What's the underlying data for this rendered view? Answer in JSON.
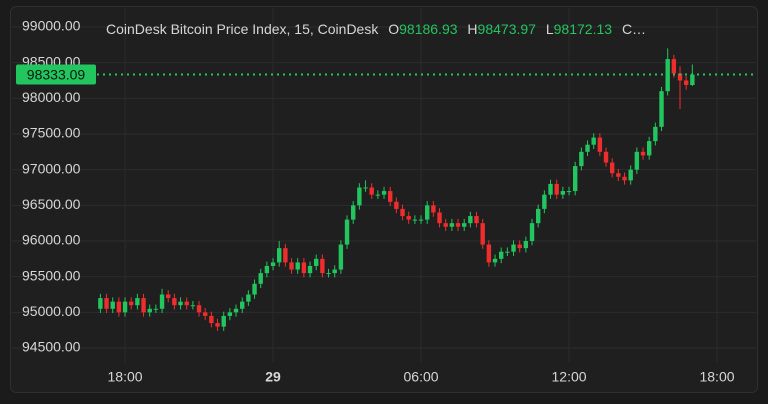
{
  "chart_data": {
    "type": "candlestick",
    "title": "CoinDesk Bitcoin Price Index, 15, CoinDesk",
    "ohlc_labels": [
      "O",
      "H",
      "L",
      "C…"
    ],
    "up_color": "#22c55e",
    "down_color": "#ef2d2d",
    "grid": true,
    "x": [
      17,
      17.25,
      17.5,
      17.75,
      18,
      18.25,
      18.5,
      18.75,
      19,
      19.25,
      19.5,
      19.75,
      20,
      20.25,
      20.5,
      20.75,
      21,
      21.25,
      21.5,
      21.75,
      22,
      22.25,
      22.5,
      22.75,
      23,
      23.25,
      23.5,
      23.75,
      24,
      24.25,
      24.5,
      24.75,
      25,
      25.25,
      25.5,
      25.75,
      26,
      26.25,
      26.5,
      26.75,
      27,
      27.25,
      27.5,
      27.75,
      28,
      28.25,
      28.5,
      28.75,
      29,
      29.25,
      29.5,
      29.75,
      30,
      30.25,
      30.5,
      30.75,
      31,
      31.25,
      31.5,
      31.75,
      32,
      32.25,
      32.5,
      32.75,
      33,
      33.25,
      33.5,
      33.75,
      34,
      34.25,
      34.5,
      34.75,
      35,
      35.25,
      35.5,
      35.75,
      36,
      36.25,
      36.5,
      36.75,
      37,
      37.25,
      37.5,
      37.75,
      38,
      38.25,
      38.5,
      38.75,
      39,
      39.25,
      39.5,
      39.75,
      40,
      40.25,
      40.5,
      40.75,
      41
    ],
    "open": [
      95050,
      95200,
      95050,
      95150,
      95000,
      95150,
      95100,
      95200,
      95000,
      95050,
      95050,
      95250,
      95200,
      95100,
      95150,
      95100,
      95100,
      95000,
      94950,
      94850,
      94800,
      94950,
      95000,
      95050,
      95150,
      95250,
      95400,
      95550,
      95650,
      95700,
      95900,
      95700,
      95600,
      95700,
      95550,
      95650,
      95750,
      95550,
      95550,
      95600,
      95950,
      96300,
      96500,
      96750,
      96750,
      96650,
      96650,
      96700,
      96550,
      96450,
      96350,
      96300,
      96300,
      96300,
      96500,
      96400,
      96250,
      96200,
      96250,
      96200,
      96250,
      96350,
      96250,
      95950,
      95700,
      95750,
      95850,
      95850,
      95950,
      95900,
      96000,
      96250,
      96450,
      96650,
      96800,
      96650,
      96700,
      96700,
      97050,
      97250,
      97350,
      97450,
      97250,
      97100,
      96950,
      96900,
      96850,
      97000,
      97250,
      97200,
      97400,
      97600,
      98100,
      98550,
      98350,
      98250,
      98186.93
    ],
    "high": [
      95260,
      95260,
      95210,
      95210,
      95210,
      95210,
      95260,
      95260,
      95110,
      95110,
      95330,
      95310,
      95260,
      95210,
      95210,
      95160,
      95160,
      95060,
      95010,
      94910,
      95010,
      95060,
      95110,
      95210,
      95310,
      95460,
      95610,
      95710,
      95760,
      96000,
      95960,
      95760,
      95760,
      95760,
      95710,
      95810,
      95810,
      95610,
      95660,
      96010,
      96360,
      96560,
      96810,
      96850,
      96810,
      96710,
      96760,
      96760,
      96610,
      96510,
      96410,
      96360,
      96360,
      96560,
      96560,
      96460,
      96310,
      96310,
      96310,
      96310,
      96410,
      96410,
      96310,
      96010,
      95810,
      95910,
      95910,
      96010,
      96010,
      96060,
      96310,
      96510,
      96710,
      96860,
      96860,
      96760,
      96760,
      97110,
      97310,
      97410,
      97510,
      97510,
      97310,
      97160,
      97010,
      96960,
      97060,
      97310,
      97310,
      97460,
      97660,
      98160,
      98700,
      98610,
      98450,
      98310,
      98473.97
    ],
    "low": [
      94990,
      94990,
      94990,
      94940,
      94940,
      95040,
      95040,
      94940,
      94940,
      94990,
      94990,
      95140,
      95040,
      95040,
      95040,
      95040,
      94940,
      94890,
      94790,
      94740,
      94740,
      94890,
      94940,
      94990,
      95090,
      95190,
      95340,
      95490,
      95590,
      95640,
      95640,
      95540,
      95540,
      95490,
      95490,
      95590,
      95490,
      95490,
      95490,
      95540,
      95890,
      96240,
      96440,
      96690,
      96590,
      96590,
      96590,
      96490,
      96390,
      96290,
      96240,
      96240,
      96240,
      96240,
      96340,
      96190,
      96140,
      96140,
      96140,
      96140,
      96190,
      96190,
      95890,
      95640,
      95640,
      95690,
      95790,
      95790,
      95840,
      95840,
      95940,
      96190,
      96390,
      96590,
      96590,
      96590,
      96640,
      96640,
      96990,
      97190,
      97290,
      97190,
      97040,
      96890,
      96840,
      96790,
      96790,
      96940,
      97140,
      97140,
      97340,
      97540,
      98040,
      98290,
      97850,
      98120,
      98172.13
    ],
    "close": [
      95200,
      95050,
      95150,
      95000,
      95150,
      95100,
      95200,
      95000,
      95050,
      95050,
      95250,
      95200,
      95100,
      95150,
      95100,
      95100,
      95000,
      94950,
      94850,
      94800,
      94950,
      95000,
      95050,
      95150,
      95250,
      95400,
      95550,
      95650,
      95700,
      95900,
      95700,
      95600,
      95700,
      95550,
      95650,
      95750,
      95550,
      95550,
      95600,
      95950,
      96300,
      96500,
      96750,
      96750,
      96650,
      96650,
      96700,
      96550,
      96450,
      96350,
      96300,
      96300,
      96300,
      96500,
      96400,
      96250,
      96200,
      96250,
      96200,
      96250,
      96350,
      96250,
      95950,
      95700,
      95750,
      95850,
      95850,
      95950,
      95900,
      96000,
      96250,
      96450,
      96650,
      96800,
      96650,
      96700,
      96700,
      97050,
      97250,
      97350,
      97450,
      97250,
      97100,
      96950,
      96900,
      96850,
      97000,
      97250,
      97200,
      97400,
      97600,
      98100,
      98550,
      98350,
      98250,
      98186.93,
      98333.09
    ],
    "xlim": [
      16.66,
      43.54
    ],
    "xticks": [
      {
        "value": 18,
        "label": "18:00"
      },
      {
        "value": 24,
        "label": "29"
      },
      {
        "value": 30,
        "label": "06:00"
      },
      {
        "value": 36,
        "label": "12:00"
      },
      {
        "value": 42,
        "label": "18:00"
      }
    ],
    "ylim": [
      94220,
      99210
    ],
    "yticks": [
      {
        "value": 94500,
        "label": "94500.00"
      },
      {
        "value": 95000,
        "label": "95000.00"
      },
      {
        "value": 95500,
        "label": "95500.00"
      },
      {
        "value": 96000,
        "label": "96000.00"
      },
      {
        "value": 96500,
        "label": "96500.00"
      },
      {
        "value": 97000,
        "label": "97000.00"
      },
      {
        "value": 97500,
        "label": "97500.00"
      },
      {
        "value": 98000,
        "label": "98000.00"
      },
      {
        "value": 98500,
        "label": "98500.00"
      },
      {
        "value": 99000,
        "label": "99000.00"
      }
    ]
  }
}
